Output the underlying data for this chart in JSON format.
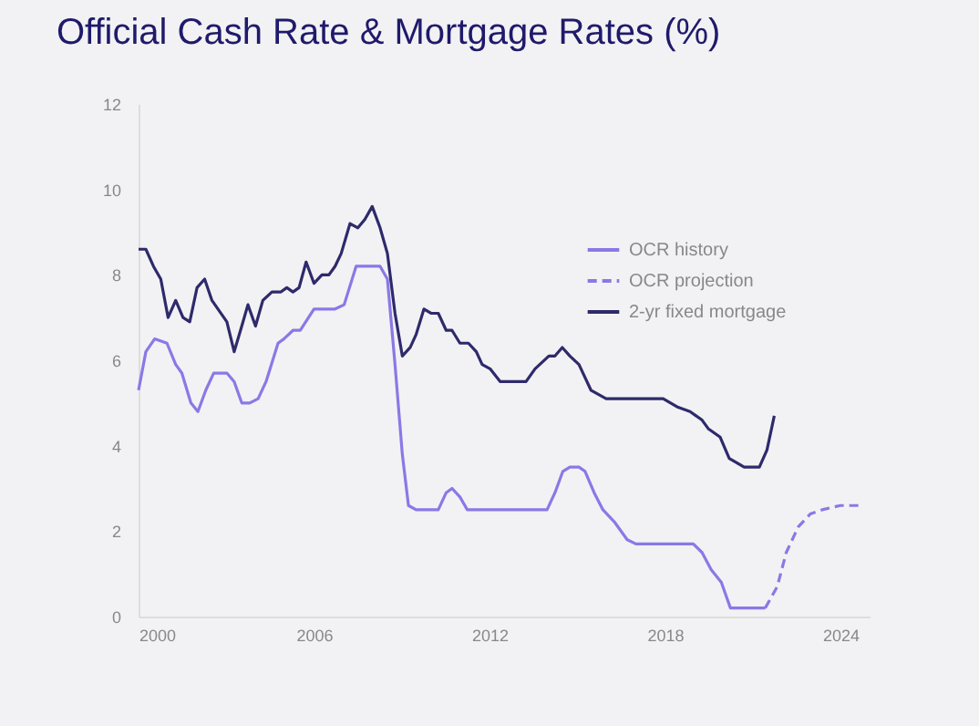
{
  "chart_data": {
    "type": "line",
    "title": "Official Cash Rate & Mortgage Rates (%)",
    "xlim": [
      2000,
      2025
    ],
    "xticks": [
      2000,
      2006,
      2012,
      2018,
      2024
    ],
    "ylim": [
      0,
      12
    ],
    "yticks": [
      0,
      2,
      4,
      6,
      8,
      10,
      12
    ],
    "grid": false,
    "legend": "top right",
    "marker": "none",
    "line_style": "solid",
    "series": [
      {
        "name": "OCR history",
        "color": "#8b78e6",
        "x": [
          2000.0,
          2000.25,
          2000.55,
          2000.97,
          2001.27,
          2001.48,
          2001.79,
          2002.03,
          2002.3,
          2002.57,
          2003.02,
          2003.27,
          2003.53,
          2003.8,
          2004.09,
          2004.36,
          2004.77,
          2004.97,
          2005.28,
          2005.53,
          2006.0,
          2006.72,
          2007.03,
          2007.44,
          2007.75,
          2008.26,
          2008.51,
          2008.77,
          2009.02,
          2009.23,
          2009.49,
          2010.0,
          2010.25,
          2010.52,
          2010.72,
          2010.99,
          2011.24,
          2013.73,
          2013.97,
          2014.24,
          2014.51,
          2014.75,
          2015.06,
          2015.27,
          2015.58,
          2015.88,
          2016.29,
          2016.71,
          2017.01,
          2018.97,
          2019.27,
          2019.58,
          2019.93,
          2020.24,
          2021.43
        ],
        "values": [
          5.3,
          6.2,
          6.5,
          6.4,
          5.9,
          5.7,
          5.0,
          4.8,
          5.3,
          5.7,
          5.7,
          5.5,
          5.0,
          5.0,
          5.1,
          5.5,
          6.4,
          6.5,
          6.7,
          6.7,
          7.2,
          7.2,
          7.3,
          8.2,
          8.2,
          8.2,
          7.9,
          5.9,
          3.8,
          2.6,
          2.5,
          2.5,
          2.5,
          2.9,
          3.0,
          2.8,
          2.5,
          2.5,
          2.5,
          2.9,
          3.4,
          3.5,
          3.5,
          3.4,
          2.9,
          2.5,
          2.2,
          1.8,
          1.7,
          1.7,
          1.5,
          1.1,
          0.8,
          0.2,
          0.2
        ]
      },
      {
        "name": "OCR projection",
        "color": "#8b78e6",
        "line_style": "dashed",
        "x": [
          2021.43,
          2021.84,
          2022.15,
          2022.56,
          2022.97,
          2023.38,
          2024.0,
          2024.76
        ],
        "values": [
          0.2,
          0.7,
          1.5,
          2.1,
          2.4,
          2.5,
          2.6,
          2.6
        ]
      },
      {
        "name": "2-yr fixed mortgage",
        "color": "#2e2a6b",
        "x": [
          2000.0,
          2000.25,
          2000.51,
          2000.76,
          2001.01,
          2001.27,
          2001.52,
          2001.75,
          2002.0,
          2002.26,
          2002.51,
          2003.02,
          2003.27,
          2003.53,
          2003.74,
          2004.0,
          2004.25,
          2004.56,
          2004.87,
          2005.07,
          2005.28,
          2005.49,
          2005.73,
          2006.0,
          2006.27,
          2006.51,
          2006.72,
          2006.93,
          2007.23,
          2007.5,
          2007.74,
          2007.99,
          2008.26,
          2008.51,
          2008.77,
          2009.02,
          2009.29,
          2009.49,
          2009.76,
          2010.0,
          2010.25,
          2010.52,
          2010.72,
          2010.99,
          2011.28,
          2011.55,
          2011.75,
          2012.02,
          2012.37,
          2013.25,
          2013.56,
          2014.03,
          2014.24,
          2014.49,
          2014.75,
          2015.06,
          2015.47,
          2015.99,
          2017.94,
          2018.45,
          2018.86,
          2019.27,
          2019.48,
          2019.89,
          2020.2,
          2020.71,
          2021.23,
          2021.49,
          2021.74
        ],
        "values": [
          8.6,
          8.6,
          8.2,
          7.9,
          7.0,
          7.4,
          7.0,
          6.9,
          7.7,
          7.9,
          7.4,
          6.9,
          6.2,
          6.8,
          7.3,
          6.8,
          7.4,
          7.6,
          7.6,
          7.7,
          7.6,
          7.7,
          8.3,
          7.8,
          8.0,
          8.0,
          8.2,
          8.5,
          9.2,
          9.1,
          9.3,
          9.6,
          9.1,
          8.5,
          7.1,
          6.1,
          6.3,
          6.6,
          7.2,
          7.1,
          7.1,
          6.7,
          6.7,
          6.4,
          6.4,
          6.2,
          5.9,
          5.8,
          5.5,
          5.5,
          5.8,
          6.1,
          6.1,
          6.3,
          6.1,
          5.9,
          5.3,
          5.1,
          5.1,
          4.9,
          4.8,
          4.6,
          4.4,
          4.2,
          3.7,
          3.5,
          3.5,
          3.9,
          4.7
        ]
      }
    ]
  }
}
